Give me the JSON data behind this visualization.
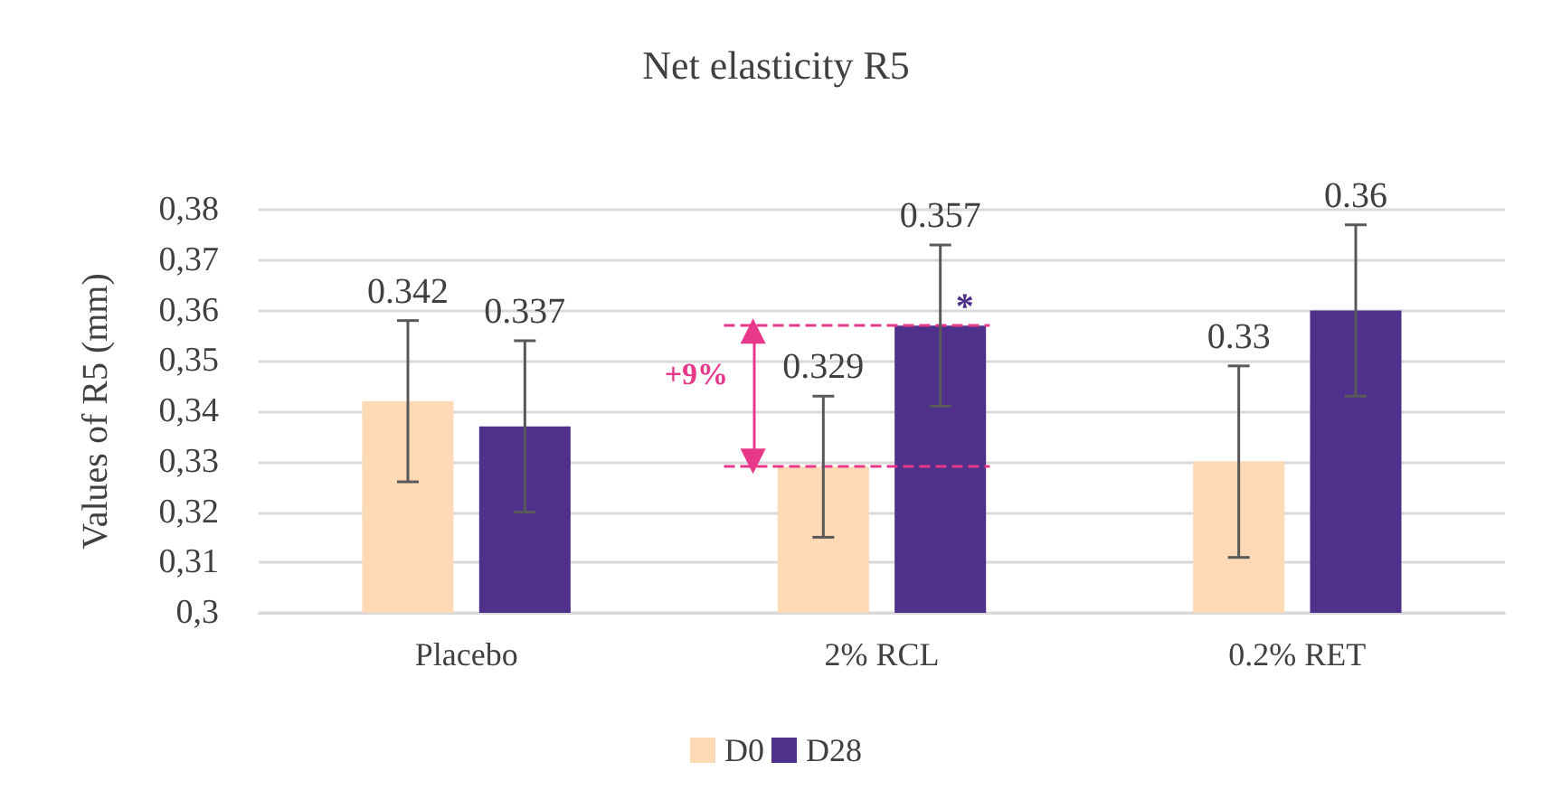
{
  "chart_data": {
    "type": "bar",
    "title": "Net elasticity R5",
    "ylabel": "Values of R5 (mm)",
    "categories": [
      "Placebo",
      "2% RCL",
      "0.2% RET"
    ],
    "series": [
      {
        "name": "D0",
        "color": "#fdd9b5",
        "values": [
          0.342,
          0.329,
          0.33
        ],
        "errors": [
          0.016,
          0.014,
          0.019
        ]
      },
      {
        "name": "D28",
        "color": "#4f318c",
        "values": [
          0.337,
          0.357,
          0.36
        ],
        "errors": [
          0.017,
          0.016,
          0.017
        ]
      }
    ],
    "ylim": [
      0.3,
      0.38
    ],
    "yticks": [
      {
        "value": 0.3,
        "label": "0,3"
      },
      {
        "value": 0.31,
        "label": "0,31"
      },
      {
        "value": 0.32,
        "label": "0,32"
      },
      {
        "value": 0.33,
        "label": "0,33"
      },
      {
        "value": 0.34,
        "label": "0,34"
      },
      {
        "value": 0.35,
        "label": "0,35"
      },
      {
        "value": 0.36,
        "label": "0,36"
      },
      {
        "value": 0.37,
        "label": "0,37"
      },
      {
        "value": 0.38,
        "label": "0,38"
      }
    ],
    "ref_lines": [
      {
        "axis": "y",
        "value": 0.357,
        "color": "#e8388a",
        "line_style": "dashed"
      },
      {
        "axis": "y",
        "value": 0.329,
        "color": "#e8388a",
        "line_style": "dashed"
      }
    ],
    "annotations": [
      "+9%",
      {
        "text": "*",
        "x": "2% RCL",
        "y": 0.357
      }
    ],
    "data_labels": true,
    "grid": "y",
    "legend": "bottom"
  }
}
